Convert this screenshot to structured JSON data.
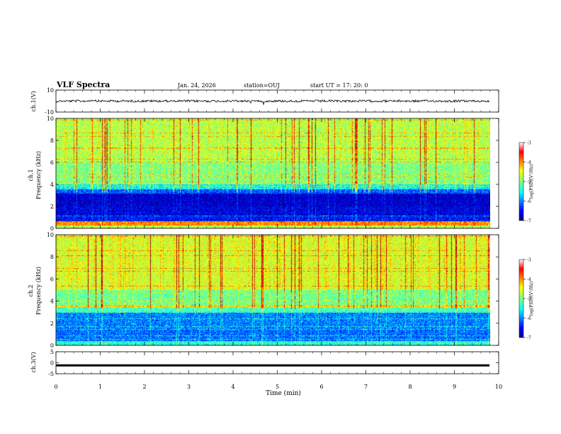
{
  "header": {
    "title": "VLF Spectra",
    "date": "Jan. 24, 2026",
    "station": "station=OUJ",
    "start": "start  UT  =   17: 20: 0"
  },
  "chart_data": [
    {
      "type": "line",
      "name": "ch1-waveform",
      "ylabel": "ch.1(V)",
      "ylim": [
        -10,
        10
      ],
      "yticks": [
        "10",
        "-10"
      ],
      "baseline": 0,
      "note": "noisy waveform near 0 V with occasional spikes"
    },
    {
      "type": "heatmap",
      "name": "ch1-spectrogram",
      "ylabel_line1": "ch.1",
      "ylabel_line2": "Frequency  (kHz)",
      "ylim": [
        0,
        10
      ],
      "yticks": [
        "0",
        "2",
        "4",
        "6",
        "8",
        "10"
      ],
      "xlim": [
        0,
        10
      ],
      "data_end_min": 9.8,
      "colorbar": {
        "label": "log(PSD)(V²/Hz)",
        "range": [
          -7,
          -3
        ],
        "ticks": [
          "-3",
          "-4",
          "-5",
          "-6",
          "-7"
        ]
      },
      "bands": [
        {
          "from": 0.0,
          "to": 0.3,
          "level": 0.55
        },
        {
          "from": 0.3,
          "to": 0.7,
          "level": 0.75
        },
        {
          "from": 0.7,
          "to": 1.2,
          "level": 0.12
        },
        {
          "from": 1.2,
          "to": 2.0,
          "level": 0.08
        },
        {
          "from": 2.0,
          "to": 3.2,
          "level": 0.06
        },
        {
          "from": 3.2,
          "to": 3.6,
          "level": 0.2
        },
        {
          "from": 3.6,
          "to": 4.0,
          "level": 0.36
        },
        {
          "from": 4.0,
          "to": 6.0,
          "level": 0.5
        },
        {
          "from": 6.0,
          "to": 10.0,
          "level": 0.56
        }
      ]
    },
    {
      "type": "heatmap",
      "name": "ch2-spectrogram",
      "ylabel_line1": "ch.2",
      "ylabel_line2": "Frequency  (kHz)",
      "ylim": [
        0,
        10
      ],
      "yticks": [
        "0",
        "2",
        "4",
        "6",
        "8",
        "10"
      ],
      "xlim": [
        0,
        10
      ],
      "data_end_min": 9.8,
      "colorbar": {
        "label": "log(PSD)(V²/Hz)",
        "range": [
          -7,
          -3
        ],
        "ticks": [
          "-3",
          "-4",
          "-5",
          "-6",
          "-7"
        ]
      },
      "bands": [
        {
          "from": 0.0,
          "to": 0.4,
          "level": 0.4
        },
        {
          "from": 0.4,
          "to": 1.5,
          "level": 0.22
        },
        {
          "from": 1.5,
          "to": 3.0,
          "level": 0.24
        },
        {
          "from": 3.0,
          "to": 3.5,
          "level": 0.42
        },
        {
          "from": 3.5,
          "to": 3.7,
          "level": 0.66
        },
        {
          "from": 3.7,
          "to": 5.0,
          "level": 0.48
        },
        {
          "from": 5.0,
          "to": 10.0,
          "level": 0.6
        }
      ]
    },
    {
      "type": "line",
      "name": "ch3-waveform",
      "ylabel": "ch.3(V)",
      "ylim": [
        -5,
        5
      ],
      "yticks": [
        "5",
        "0",
        "-5"
      ],
      "baseline": -1.2,
      "note": "flat thick trace"
    }
  ],
  "xaxis": {
    "label": "Time  (min)",
    "range": [
      0,
      10
    ],
    "ticks": [
      "0",
      "1",
      "2",
      "3",
      "4",
      "5",
      "6",
      "7",
      "8",
      "9",
      "10"
    ]
  },
  "colors": {
    "jet": [
      "#00008f",
      "#0000ff",
      "#0080ff",
      "#00ffff",
      "#80ff80",
      "#ffff00",
      "#ff8000",
      "#ff0000",
      "#800000"
    ]
  }
}
